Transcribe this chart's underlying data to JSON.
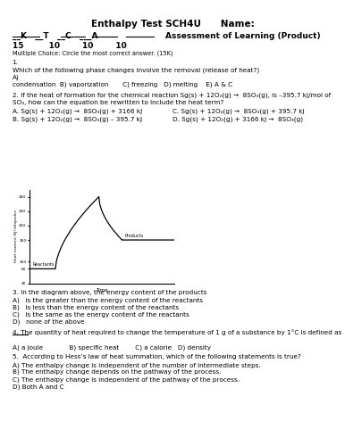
{
  "title": "Enthalpy Test SCH4U      Name:",
  "bg_color": "#ffffff",
  "text_color": "#000000",
  "graph_ylabel": "Heat content (kJ) kilojoules",
  "graph_xlabel": "Time",
  "graph_yticks": [
    40,
    80,
    100,
    160,
    200,
    240,
    280
  ],
  "graph_reactants_label": "Reactants",
  "graph_products_label": "Products",
  "q2_A": "A. Sg(s) + 12O₂(g) →  8SO₃(g) + 3166 kJ",
  "q2_C": "C. Sg(s) + 12O₂(g) →  8SO₃(g) + 395.7 kJ",
  "q2_B": "B. Sg(s) + 12O₂(g) →  8SO₃(g) – 395.7 kJ",
  "q2_D": "D. Sg(s) + 12O₂(g) + 3166 kJ →  8SO₃(g)",
  "q3_intro": "3. In the diagram above, the energy content of the products",
  "q3_A": "A)   is the greater than the energy content of the reactants",
  "q3_B": "B)   is less than the energy content of the reactants",
  "q3_C": "C)   is the same as the energy content of the reactants",
  "q3_D": "D)   none of the above",
  "q4_answers": "A) a joule             B) specific heat        C) a calorie   D) density",
  "q5_intro": "5.  According to Hess’s law of heat summation, which of the following statements is true?",
  "q5_A": "A) The enthalpy change is independent of the number of intermediate steps.",
  "q5_B": "B) The enthalpy change depends on the pathway of the process.",
  "q5_C": "C) The enthalpy change is independent of the pathway of the process.",
  "q5_D": "D) Both A and C"
}
